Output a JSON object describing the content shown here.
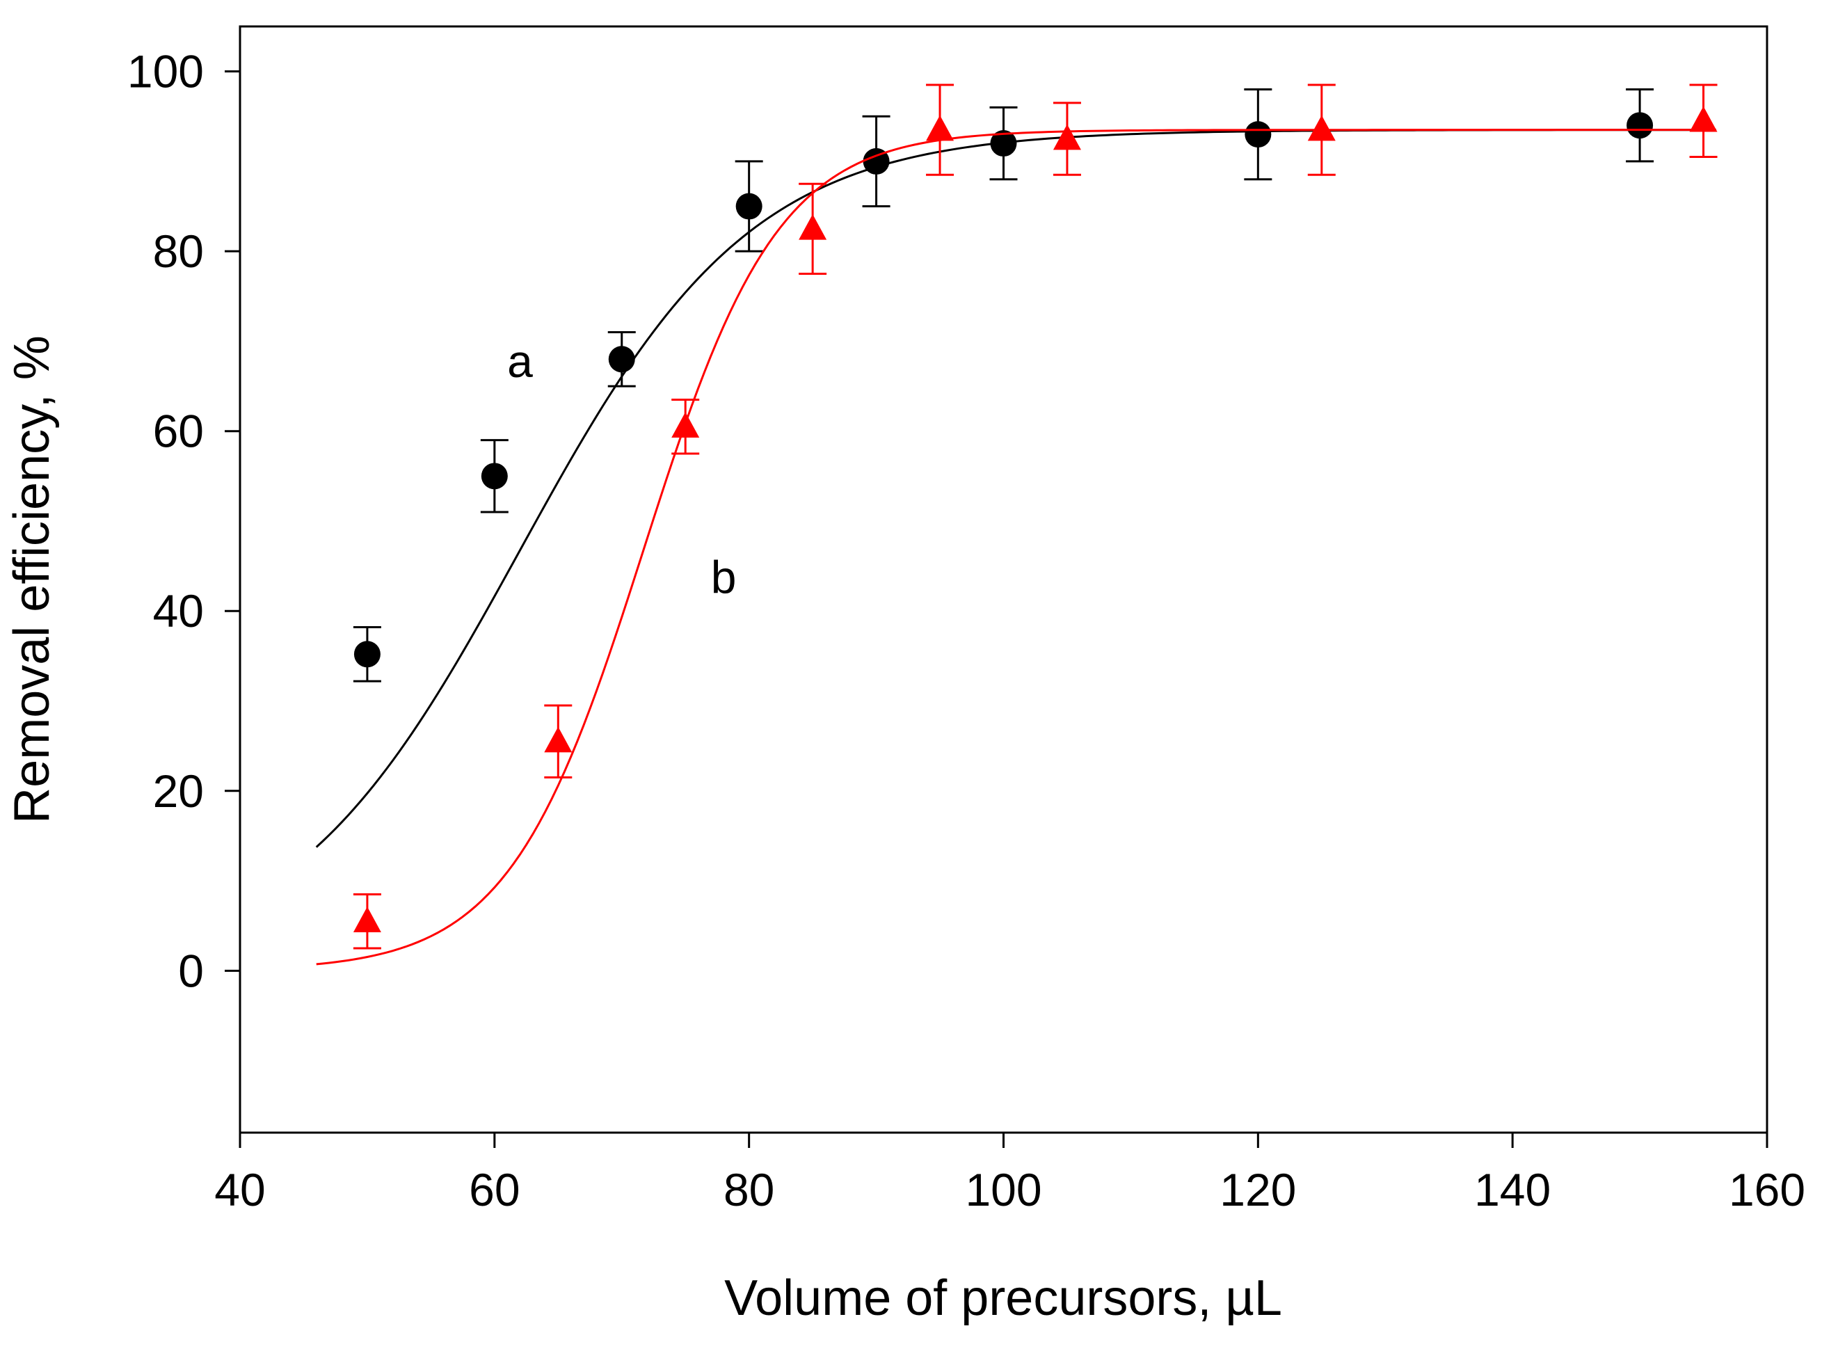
{
  "chart_data": {
    "type": "scatter",
    "title": "",
    "xlabel": "Volume of precursors, µL",
    "ylabel": "Removal efficiency, %",
    "xlim": [
      40,
      160
    ],
    "ylim": [
      -18,
      105
    ],
    "xticks": [
      40,
      60,
      80,
      100,
      120,
      140,
      160
    ],
    "yticks": [
      0,
      20,
      40,
      60,
      80,
      100
    ],
    "xtick_labels": [
      "40",
      "60",
      "80",
      "100",
      "120",
      "140",
      "160"
    ],
    "ytick_labels": [
      "0",
      "20",
      "40",
      "60",
      "80",
      "100"
    ],
    "grid": false,
    "series": [
      {
        "name": "a",
        "label": "a",
        "color": "#000000",
        "marker": "circle",
        "x": [
          50,
          60,
          70,
          80,
          90,
          100,
          120,
          150
        ],
        "y": [
          35.2,
          55,
          68,
          85,
          90,
          92,
          93,
          94
        ],
        "err": [
          3,
          4,
          3,
          5,
          5,
          4,
          5,
          4
        ],
        "fit": {
          "model": "sigmoid",
          "top": 93.5,
          "x0": 62,
          "k": 9.1,
          "x_range": [
            46,
            156
          ]
        },
        "label_at": [
          61,
          66
        ]
      },
      {
        "name": "b",
        "label": "b",
        "color": "#ff0000",
        "marker": "triangle",
        "x": [
          50,
          65,
          75,
          85,
          95,
          105,
          125,
          155
        ],
        "y": [
          5.5,
          25.5,
          60.5,
          82.5,
          93.5,
          92.5,
          93.5,
          94.5
        ],
        "err": [
          3,
          4,
          3,
          5,
          5,
          4,
          5,
          4
        ],
        "fit": {
          "model": "sigmoid",
          "top": 93.5,
          "x0": 71.7,
          "k": 5.3,
          "x_range": [
            46,
            156
          ]
        },
        "label_at": [
          77,
          42
        ]
      }
    ]
  }
}
